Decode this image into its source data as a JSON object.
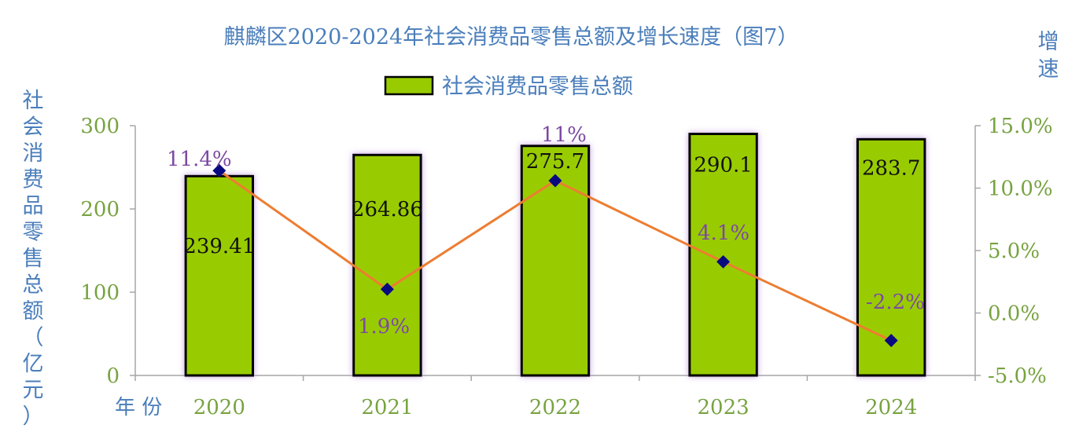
{
  "chart_data": {
    "type": "bar",
    "title": "麒麟区2020-2024年社会消费品零售总额及增长速度（图7）",
    "categories": [
      "2020",
      "2021",
      "2022",
      "2023",
      "2024"
    ],
    "xlabel": "年 份",
    "ylabel": "社会消费品零售总额（亿元）",
    "y2label": "增速",
    "ylim": [
      0,
      300
    ],
    "y_ticks": [
      "0",
      "100",
      "200",
      "300"
    ],
    "y2lim": [
      -5,
      15
    ],
    "y2_ticks": [
      "-5.0%",
      "0.0%",
      "5.0%",
      "10.0%",
      "15.0%"
    ],
    "legend": {
      "position": "top-center",
      "entries": [
        "社会消费品零售总额"
      ]
    },
    "series": [
      {
        "name": "社会消费品零售总额",
        "type": "bar",
        "axis": "left",
        "values": [
          239.41,
          264.86,
          275.7,
          290.1,
          283.7
        ],
        "labels": [
          "239.41",
          "264.86",
          "275.7",
          "290.1",
          "283.7"
        ],
        "color": "#99cc00"
      },
      {
        "type": "line",
        "axis": "right",
        "values": [
          11.4,
          1.9,
          10.6,
          4.1,
          -2.2
        ],
        "labels": [
          "11.4%",
          "1.9%",
          "11%",
          "4.1%",
          "-2.2%"
        ],
        "color": "#ed7d31",
        "marker_color": "#0a0a80"
      }
    ],
    "grid": false
  }
}
